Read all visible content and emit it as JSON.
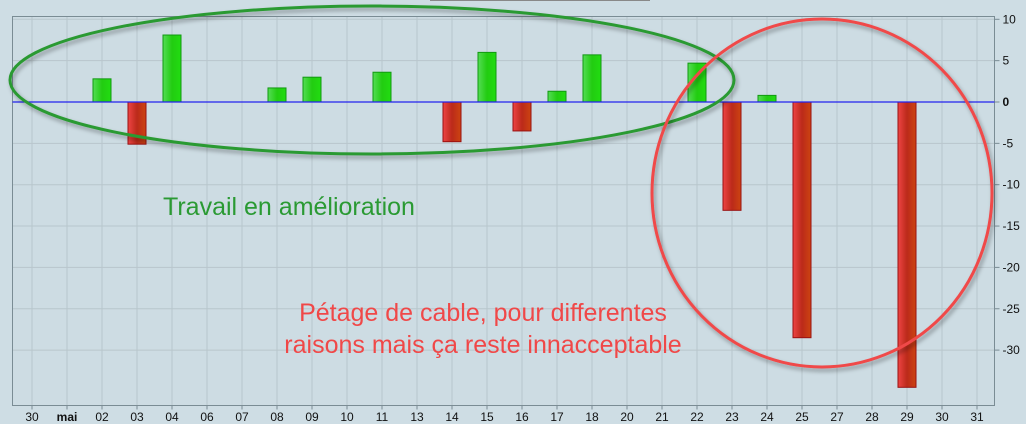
{
  "chart_data": {
    "type": "bar",
    "categories": [
      "30",
      "mai",
      "02",
      "03",
      "04",
      "06",
      "07",
      "08",
      "09",
      "10",
      "11",
      "13",
      "14",
      "15",
      "16",
      "17",
      "18",
      "20",
      "21",
      "22",
      "23",
      "24",
      "25",
      "27",
      "28",
      "29",
      "30",
      "31"
    ],
    "values": [
      null,
      null,
      2.8,
      -5.1,
      8.1,
      null,
      null,
      1.7,
      3.0,
      null,
      3.6,
      null,
      -4.8,
      6.0,
      -3.5,
      1.3,
      5.7,
      null,
      null,
      4.7,
      -13.1,
      0.8,
      -28.5,
      null,
      null,
      -34.5,
      null,
      null
    ],
    "ylim": [
      -37,
      10.5
    ],
    "yticks": [
      10,
      5,
      0,
      -5,
      -10,
      -15,
      -20,
      -25,
      -30
    ],
    "grid": true,
    "positive_color": "#22cc22",
    "negative_color": "#cc3322",
    "zero_line_color": "#2222ee",
    "annotations": [
      {
        "text": "Travail en amélioration",
        "color": "#2a9a33"
      },
      {
        "lines": [
          "Pétage de cable, pour differentes",
          "raisons mais ça reste innacceptable"
        ],
        "color": "#f04848"
      }
    ]
  }
}
